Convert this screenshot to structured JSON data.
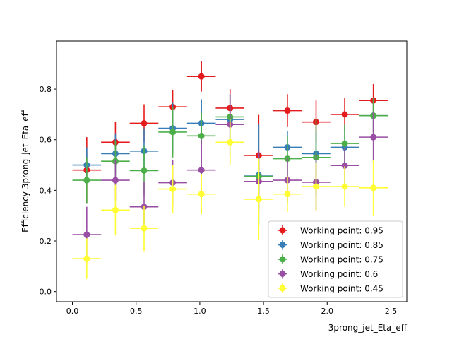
{
  "chart_data": {
    "type": "scatter",
    "title": "",
    "xlabel": "3prong_jet_Eta_eff",
    "ylabel": "Efficiency 3prong_jet_Eta_eff",
    "xlim": [
      -0.125,
      2.625
    ],
    "ylim": [
      -0.04,
      0.99
    ],
    "xticks": [
      0.0,
      0.5,
      1.0,
      1.5,
      2.0,
      2.5
    ],
    "xtick_labels": [
      "0.0",
      "0.5",
      "1.0",
      "1.5",
      "2.0",
      "2.5"
    ],
    "yticks": [
      0.0,
      0.2,
      0.4,
      0.6,
      0.8
    ],
    "ytick_labels": [
      "0.0",
      "0.2",
      "0.4",
      "0.6",
      "0.8"
    ],
    "x": [
      0.1125,
      0.3375,
      0.5625,
      0.7875,
      1.0125,
      1.2375,
      1.4625,
      1.6875,
      1.9125,
      2.1375,
      2.3625
    ],
    "x_halfwidth": 0.1125,
    "grid": false,
    "legend_position": "lower-right",
    "series": [
      {
        "name": "Working point: 0.95",
        "color": "#e41a1c",
        "y": [
          0.48,
          0.59,
          0.665,
          0.73,
          0.85,
          0.725,
          0.538,
          0.715,
          0.67,
          0.7,
          0.755
        ],
        "yerr": [
          0.13,
          0.08,
          0.075,
          0.065,
          0.06,
          0.075,
          0.16,
          0.065,
          0.085,
          0.065,
          0.065
        ]
      },
      {
        "name": "Working point: 0.85",
        "color": "#377eb8",
        "y": [
          0.5,
          0.545,
          0.555,
          0.645,
          0.665,
          0.68,
          0.46,
          0.57,
          0.545,
          0.57,
          0.695
        ],
        "yerr": [
          0.07,
          0.08,
          0.09,
          0.1,
          0.095,
          0.1,
          0.2,
          0.065,
          0.09,
          0.08,
          0.065
        ]
      },
      {
        "name": "Working point: 0.75",
        "color": "#4daf4a",
        "y": [
          0.44,
          0.515,
          0.478,
          0.63,
          0.615,
          0.69,
          0.455,
          0.525,
          0.53,
          0.585,
          0.695
        ],
        "yerr": [
          0.09,
          0.08,
          0.1,
          0.1,
          0.09,
          0.09,
          0.1,
          0.09,
          0.15,
          0.075,
          0.07
        ]
      },
      {
        "name": "Working point: 0.6",
        "color": "#984ea3",
        "y": [
          0.225,
          0.44,
          0.335,
          0.43,
          0.48,
          0.66,
          0.435,
          0.44,
          0.432,
          0.498,
          0.61
        ],
        "yerr": [
          0.11,
          0.08,
          0.1,
          0.09,
          0.12,
          0.12,
          0.12,
          0.09,
          0.11,
          0.07,
          0.1
        ]
      },
      {
        "name": "Working point: 0.45",
        "color": "#ffff33",
        "y": [
          0.13,
          0.322,
          0.25,
          0.405,
          0.385,
          0.59,
          0.365,
          0.385,
          0.415,
          0.415,
          0.41
        ],
        "yerr": [
          0.08,
          0.1,
          0.09,
          0.095,
          0.08,
          0.09,
          0.16,
          0.07,
          0.095,
          0.08,
          0.11
        ]
      }
    ]
  }
}
